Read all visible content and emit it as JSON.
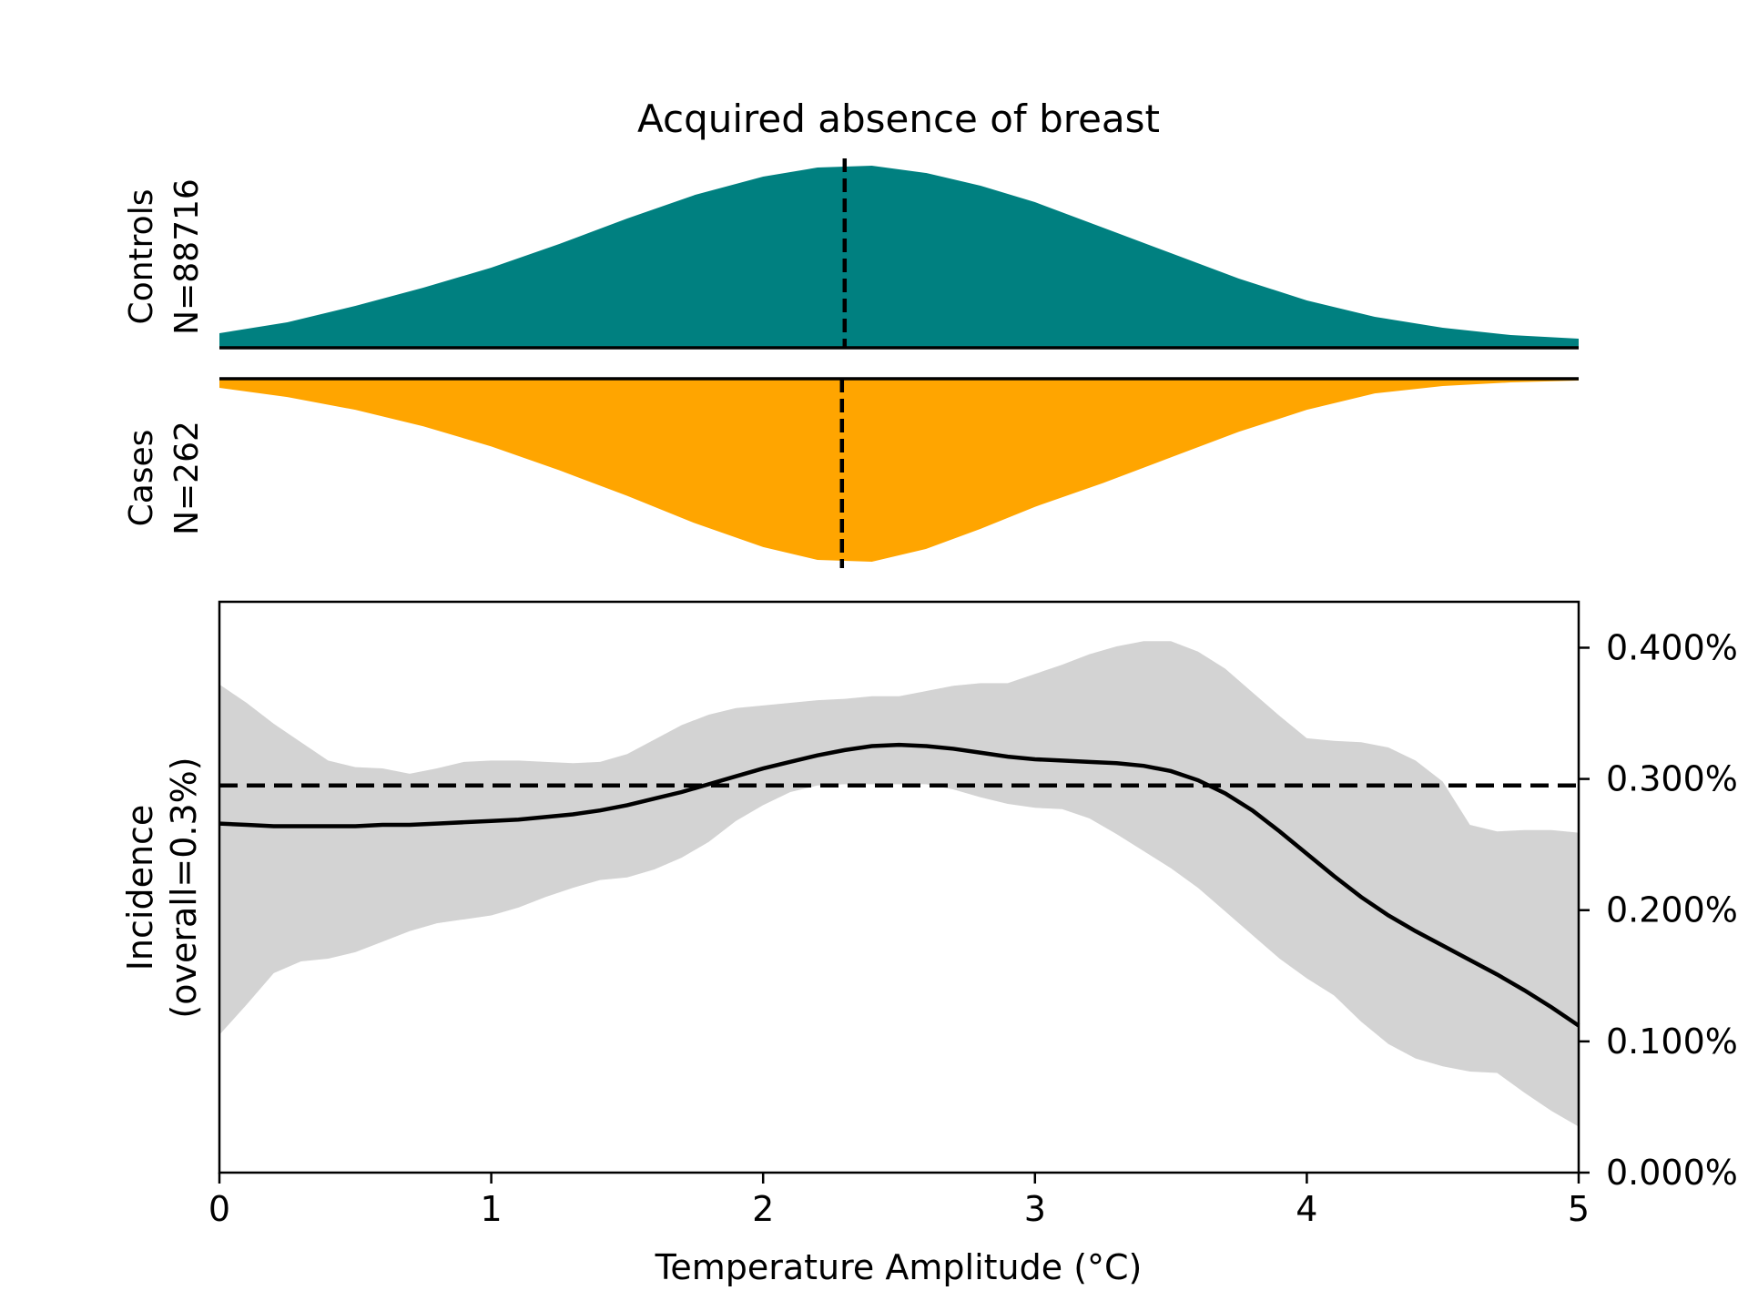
{
  "chart_data": [
    {
      "type": "area",
      "panel": "distributions",
      "title": "Acquired absence of breast",
      "x_range": [
        0,
        5
      ],
      "colors": {
        "controls": "#008080",
        "cases": "#FFA500",
        "ci_band": "#D3D3D3",
        "line": "#000000"
      },
      "series": [
        {
          "name": "Controls",
          "n_label": "N=88716",
          "median": 2.3,
          "x": [
            0,
            0.25,
            0.5,
            0.75,
            1.0,
            1.25,
            1.5,
            1.75,
            2.0,
            2.2,
            2.4,
            2.6,
            2.8,
            3.0,
            3.25,
            3.5,
            3.75,
            4.0,
            4.25,
            4.5,
            4.75,
            5.0
          ],
          "density": [
            0.08,
            0.14,
            0.23,
            0.33,
            0.44,
            0.57,
            0.71,
            0.84,
            0.94,
            0.99,
            1.0,
            0.96,
            0.89,
            0.8,
            0.66,
            0.52,
            0.38,
            0.26,
            0.17,
            0.11,
            0.07,
            0.05
          ]
        },
        {
          "name": "Cases",
          "n_label": "N=262",
          "median": 2.29,
          "x": [
            0,
            0.25,
            0.5,
            0.75,
            1.0,
            1.25,
            1.5,
            1.75,
            2.0,
            2.2,
            2.4,
            2.6,
            2.8,
            3.0,
            3.25,
            3.5,
            3.75,
            4.0,
            4.25,
            4.5,
            4.75,
            5.0
          ],
          "density": [
            0.05,
            0.1,
            0.17,
            0.26,
            0.37,
            0.5,
            0.64,
            0.79,
            0.92,
            0.99,
            1.0,
            0.93,
            0.82,
            0.7,
            0.57,
            0.43,
            0.29,
            0.17,
            0.08,
            0.04,
            0.02,
            0.01
          ]
        }
      ]
    },
    {
      "type": "line",
      "panel": "incidence",
      "xlabel": "Temperature Amplitude (°C)",
      "ylabel_line1": "Incidence",
      "ylabel_line2": "(overall=0.3%)",
      "xlim": [
        0,
        5
      ],
      "ylim": [
        0,
        0.00435
      ],
      "x_ticks": [
        {
          "value": 0,
          "label": "0"
        },
        {
          "value": 1,
          "label": "1"
        },
        {
          "value": 2,
          "label": "2"
        },
        {
          "value": 3,
          "label": "3"
        },
        {
          "value": 4,
          "label": "4"
        },
        {
          "value": 5,
          "label": "5"
        }
      ],
      "y_ticks": [
        {
          "value": 0,
          "label": "0.000%"
        },
        {
          "value": 0.001,
          "label": "0.100%"
        },
        {
          "value": 0.002,
          "label": "0.200%"
        },
        {
          "value": 0.003,
          "label": "0.300%"
        },
        {
          "value": 0.004,
          "label": "0.400%"
        }
      ],
      "y_axis_side": "right",
      "overall_rate": 0.00295,
      "x": [
        0,
        0.1,
        0.2,
        0.3,
        0.4,
        0.5,
        0.6,
        0.7,
        0.8,
        0.9,
        1.0,
        1.1,
        1.2,
        1.3,
        1.4,
        1.5,
        1.6,
        1.7,
        1.8,
        1.9,
        2.0,
        2.1,
        2.2,
        2.3,
        2.4,
        2.5,
        2.6,
        2.7,
        2.8,
        2.9,
        3.0,
        3.1,
        3.2,
        3.3,
        3.4,
        3.5,
        3.6,
        3.7,
        3.8,
        3.9,
        4.0,
        4.1,
        4.2,
        4.3,
        4.4,
        4.5,
        4.6,
        4.7,
        4.8,
        4.9,
        5.0
      ],
      "incidence": [
        0.00266,
        0.00265,
        0.00264,
        0.00264,
        0.00264,
        0.00264,
        0.00265,
        0.00265,
        0.00266,
        0.00267,
        0.00268,
        0.00269,
        0.00271,
        0.00273,
        0.00276,
        0.0028,
        0.00285,
        0.0029,
        0.00296,
        0.00302,
        0.00308,
        0.00313,
        0.00318,
        0.00322,
        0.00325,
        0.00326,
        0.00325,
        0.00323,
        0.0032,
        0.00317,
        0.00315,
        0.00314,
        0.00313,
        0.00312,
        0.0031,
        0.00306,
        0.00299,
        0.00289,
        0.00276,
        0.0026,
        0.00243,
        0.00226,
        0.0021,
        0.00196,
        0.00184,
        0.00173,
        0.00162,
        0.00151,
        0.00139,
        0.00126,
        0.00112
      ],
      "ci_lower": [
        0.00105,
        0.00128,
        0.00152,
        0.00161,
        0.00163,
        0.00168,
        0.00176,
        0.00184,
        0.0019,
        0.00193,
        0.00196,
        0.00202,
        0.0021,
        0.00217,
        0.00223,
        0.00225,
        0.00231,
        0.0024,
        0.00252,
        0.00268,
        0.0028,
        0.0029,
        0.00295,
        0.00296,
        0.00296,
        0.00296,
        0.00296,
        0.00292,
        0.00286,
        0.00281,
        0.00278,
        0.00277,
        0.0027,
        0.00258,
        0.00245,
        0.00232,
        0.00217,
        0.00199,
        0.00181,
        0.00163,
        0.00148,
        0.00135,
        0.00115,
        0.00098,
        0.00087,
        0.00081,
        0.00077,
        0.00076,
        0.00061,
        0.00047,
        0.00035
      ],
      "ci_upper": [
        0.00372,
        0.00358,
        0.00342,
        0.00328,
        0.00314,
        0.00309,
        0.00308,
        0.00304,
        0.00308,
        0.00313,
        0.00314,
        0.00314,
        0.00313,
        0.00312,
        0.00313,
        0.00319,
        0.0033,
        0.00341,
        0.00349,
        0.00354,
        0.00356,
        0.00358,
        0.0036,
        0.00361,
        0.00363,
        0.00363,
        0.00367,
        0.00371,
        0.00373,
        0.00373,
        0.0038,
        0.00387,
        0.00395,
        0.00401,
        0.00405,
        0.00405,
        0.00397,
        0.00384,
        0.00366,
        0.00348,
        0.00331,
        0.00329,
        0.00328,
        0.00324,
        0.00314,
        0.00298,
        0.00265,
        0.0026,
        0.00261,
        0.00261,
        0.00259
      ]
    }
  ]
}
